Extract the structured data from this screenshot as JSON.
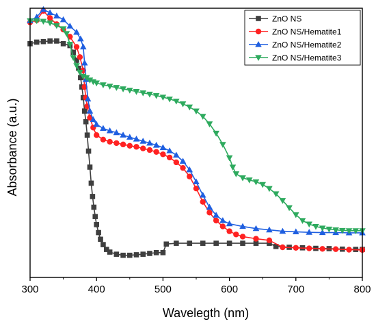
{
  "chart_data": {
    "type": "line",
    "xlabel": "Wavelegth (nm)",
    "ylabel": "Absorbance (a.u.)",
    "xlim": [
      300,
      800
    ],
    "ylim": [
      0,
      1
    ],
    "x_ticks": [
      300,
      400,
      500,
      600,
      700,
      800
    ],
    "y_tick_labels_shown": false,
    "grid": false,
    "legend": "top-right",
    "series": [
      {
        "name": "ZnO NS",
        "marker": "square",
        "color": "#3f3f3f",
        "points": [
          [
            300,
            0.862
          ],
          [
            310,
            0.868
          ],
          [
            320,
            0.87
          ],
          [
            330,
            0.872
          ],
          [
            340,
            0.872
          ],
          [
            350,
            0.862
          ],
          [
            360,
            0.855
          ],
          [
            365,
            0.83
          ],
          [
            370,
            0.8
          ],
          [
            373,
            0.77
          ],
          [
            376,
            0.735
          ],
          [
            378,
            0.7
          ],
          [
            380,
            0.66
          ],
          [
            382,
            0.61
          ],
          [
            384,
            0.57
          ],
          [
            386,
            0.52
          ],
          [
            388,
            0.46
          ],
          [
            390,
            0.4
          ],
          [
            392,
            0.34
          ],
          [
            394,
            0.29
          ],
          [
            396,
            0.25
          ],
          [
            398,
            0.215
          ],
          [
            400,
            0.185
          ],
          [
            403,
            0.155
          ],
          [
            406,
            0.13
          ],
          [
            410,
            0.11
          ],
          [
            415,
            0.092
          ],
          [
            420,
            0.082
          ],
          [
            430,
            0.074
          ],
          [
            440,
            0.07
          ],
          [
            450,
            0.07
          ],
          [
            460,
            0.072
          ],
          [
            470,
            0.074
          ],
          [
            480,
            0.077
          ],
          [
            490,
            0.08
          ],
          [
            500,
            0.08
          ],
          [
            505,
            0.112
          ],
          [
            520,
            0.115
          ],
          [
            540,
            0.115
          ],
          [
            560,
            0.115
          ],
          [
            580,
            0.115
          ],
          [
            600,
            0.115
          ],
          [
            620,
            0.115
          ],
          [
            640,
            0.115
          ],
          [
            660,
            0.115
          ],
          [
            670,
            0.103
          ],
          [
            690,
            0.1
          ],
          [
            710,
            0.098
          ],
          [
            730,
            0.096
          ],
          [
            750,
            0.095
          ],
          [
            770,
            0.093
          ],
          [
            790,
            0.092
          ],
          [
            800,
            0.092
          ]
        ]
      },
      {
        "name": "ZnO NS/Hematite1",
        "marker": "circle",
        "color": "#ff2222",
        "points": [
          [
            300,
            0.942
          ],
          [
            310,
            0.95
          ],
          [
            320,
            0.985
          ],
          [
            330,
            0.958
          ],
          [
            340,
            0.935
          ],
          [
            350,
            0.915
          ],
          [
            360,
            0.888
          ],
          [
            370,
            0.85
          ],
          [
            375,
            0.812
          ],
          [
            380,
            0.762
          ],
          [
            382,
            0.7
          ],
          [
            384,
            0.66
          ],
          [
            386,
            0.628
          ],
          [
            390,
            0.585
          ],
          [
            395,
            0.548
          ],
          [
            400,
            0.52
          ],
          [
            410,
            0.503
          ],
          [
            420,
            0.495
          ],
          [
            430,
            0.49
          ],
          [
            440,
            0.485
          ],
          [
            450,
            0.48
          ],
          [
            460,
            0.476
          ],
          [
            470,
            0.47
          ],
          [
            480,
            0.464
          ],
          [
            490,
            0.457
          ],
          [
            500,
            0.448
          ],
          [
            510,
            0.436
          ],
          [
            520,
            0.418
          ],
          [
            530,
            0.397
          ],
          [
            540,
            0.365
          ],
          [
            550,
            0.32
          ],
          [
            560,
            0.27
          ],
          [
            570,
            0.23
          ],
          [
            580,
            0.2
          ],
          [
            590,
            0.178
          ],
          [
            600,
            0.16
          ],
          [
            610,
            0.148
          ],
          [
            620,
            0.14
          ],
          [
            640,
            0.132
          ],
          [
            660,
            0.126
          ],
          [
            680,
            0.1
          ],
          [
            700,
            0.098
          ],
          [
            720,
            0.096
          ],
          [
            740,
            0.094
          ],
          [
            760,
            0.093
          ],
          [
            780,
            0.091
          ],
          [
            800,
            0.09
          ]
        ]
      },
      {
        "name": "ZnO NS/Hematite2",
        "marker": "triangle-up",
        "color": "#1f5fe0",
        "points": [
          [
            300,
            0.948
          ],
          [
            310,
            0.962
          ],
          [
            320,
            0.99
          ],
          [
            330,
            0.978
          ],
          [
            340,
            0.966
          ],
          [
            350,
            0.952
          ],
          [
            360,
            0.928
          ],
          [
            370,
            0.905
          ],
          [
            376,
            0.88
          ],
          [
            380,
            0.85
          ],
          [
            382,
            0.79
          ],
          [
            384,
            0.728
          ],
          [
            387,
            0.655
          ],
          [
            390,
            0.61
          ],
          [
            395,
            0.578
          ],
          [
            400,
            0.56
          ],
          [
            410,
            0.545
          ],
          [
            420,
            0.536
          ],
          [
            430,
            0.529
          ],
          [
            440,
            0.52
          ],
          [
            450,
            0.512
          ],
          [
            460,
            0.505
          ],
          [
            470,
            0.497
          ],
          [
            480,
            0.49
          ],
          [
            490,
            0.482
          ],
          [
            500,
            0.473
          ],
          [
            510,
            0.461
          ],
          [
            520,
            0.445
          ],
          [
            530,
            0.422
          ],
          [
            540,
            0.39
          ],
          [
            550,
            0.345
          ],
          [
            560,
            0.295
          ],
          [
            570,
            0.25
          ],
          [
            580,
            0.22
          ],
          [
            590,
            0.2
          ],
          [
            600,
            0.188
          ],
          [
            620,
            0.178
          ],
          [
            640,
            0.17
          ],
          [
            660,
            0.165
          ],
          [
            680,
            0.16
          ],
          [
            700,
            0.158
          ],
          [
            720,
            0.156
          ],
          [
            740,
            0.155
          ],
          [
            760,
            0.155
          ],
          [
            780,
            0.154
          ],
          [
            800,
            0.154
          ]
        ]
      },
      {
        "name": "ZnO NS/Hematite3",
        "marker": "triangle-down",
        "color": "#2eaa5e",
        "points": [
          [
            300,
            0.948
          ],
          [
            310,
            0.948
          ],
          [
            320,
            0.946
          ],
          [
            330,
            0.94
          ],
          [
            340,
            0.93
          ],
          [
            350,
            0.918
          ],
          [
            355,
            0.9
          ],
          [
            360,
            0.86
          ],
          [
            365,
            0.81
          ],
          [
            370,
            0.78
          ],
          [
            375,
            0.755
          ],
          [
            380,
            0.74
          ],
          [
            385,
            0.735
          ],
          [
            390,
            0.726
          ],
          [
            395,
            0.72
          ],
          [
            400,
            0.715
          ],
          [
            410,
            0.708
          ],
          [
            420,
            0.703
          ],
          [
            430,
            0.698
          ],
          [
            440,
            0.693
          ],
          [
            450,
            0.688
          ],
          [
            460,
            0.683
          ],
          [
            470,
            0.678
          ],
          [
            480,
            0.673
          ],
          [
            490,
            0.668
          ],
          [
            500,
            0.662
          ],
          [
            510,
            0.655
          ],
          [
            520,
            0.647
          ],
          [
            530,
            0.637
          ],
          [
            540,
            0.625
          ],
          [
            550,
            0.61
          ],
          [
            560,
            0.59
          ],
          [
            570,
            0.562
          ],
          [
            580,
            0.527
          ],
          [
            590,
            0.485
          ],
          [
            600,
            0.435
          ],
          [
            605,
            0.4
          ],
          [
            610,
            0.375
          ],
          [
            620,
            0.36
          ],
          [
            630,
            0.352
          ],
          [
            640,
            0.345
          ],
          [
            650,
            0.335
          ],
          [
            660,
            0.32
          ],
          [
            670,
            0.3
          ],
          [
            680,
            0.275
          ],
          [
            690,
            0.248
          ],
          [
            700,
            0.222
          ],
          [
            710,
            0.2
          ],
          [
            720,
            0.187
          ],
          [
            730,
            0.178
          ],
          [
            740,
            0.172
          ],
          [
            750,
            0.168
          ],
          [
            760,
            0.165
          ],
          [
            770,
            0.163
          ],
          [
            780,
            0.162
          ],
          [
            790,
            0.162
          ],
          [
            800,
            0.162
          ]
        ]
      }
    ]
  }
}
